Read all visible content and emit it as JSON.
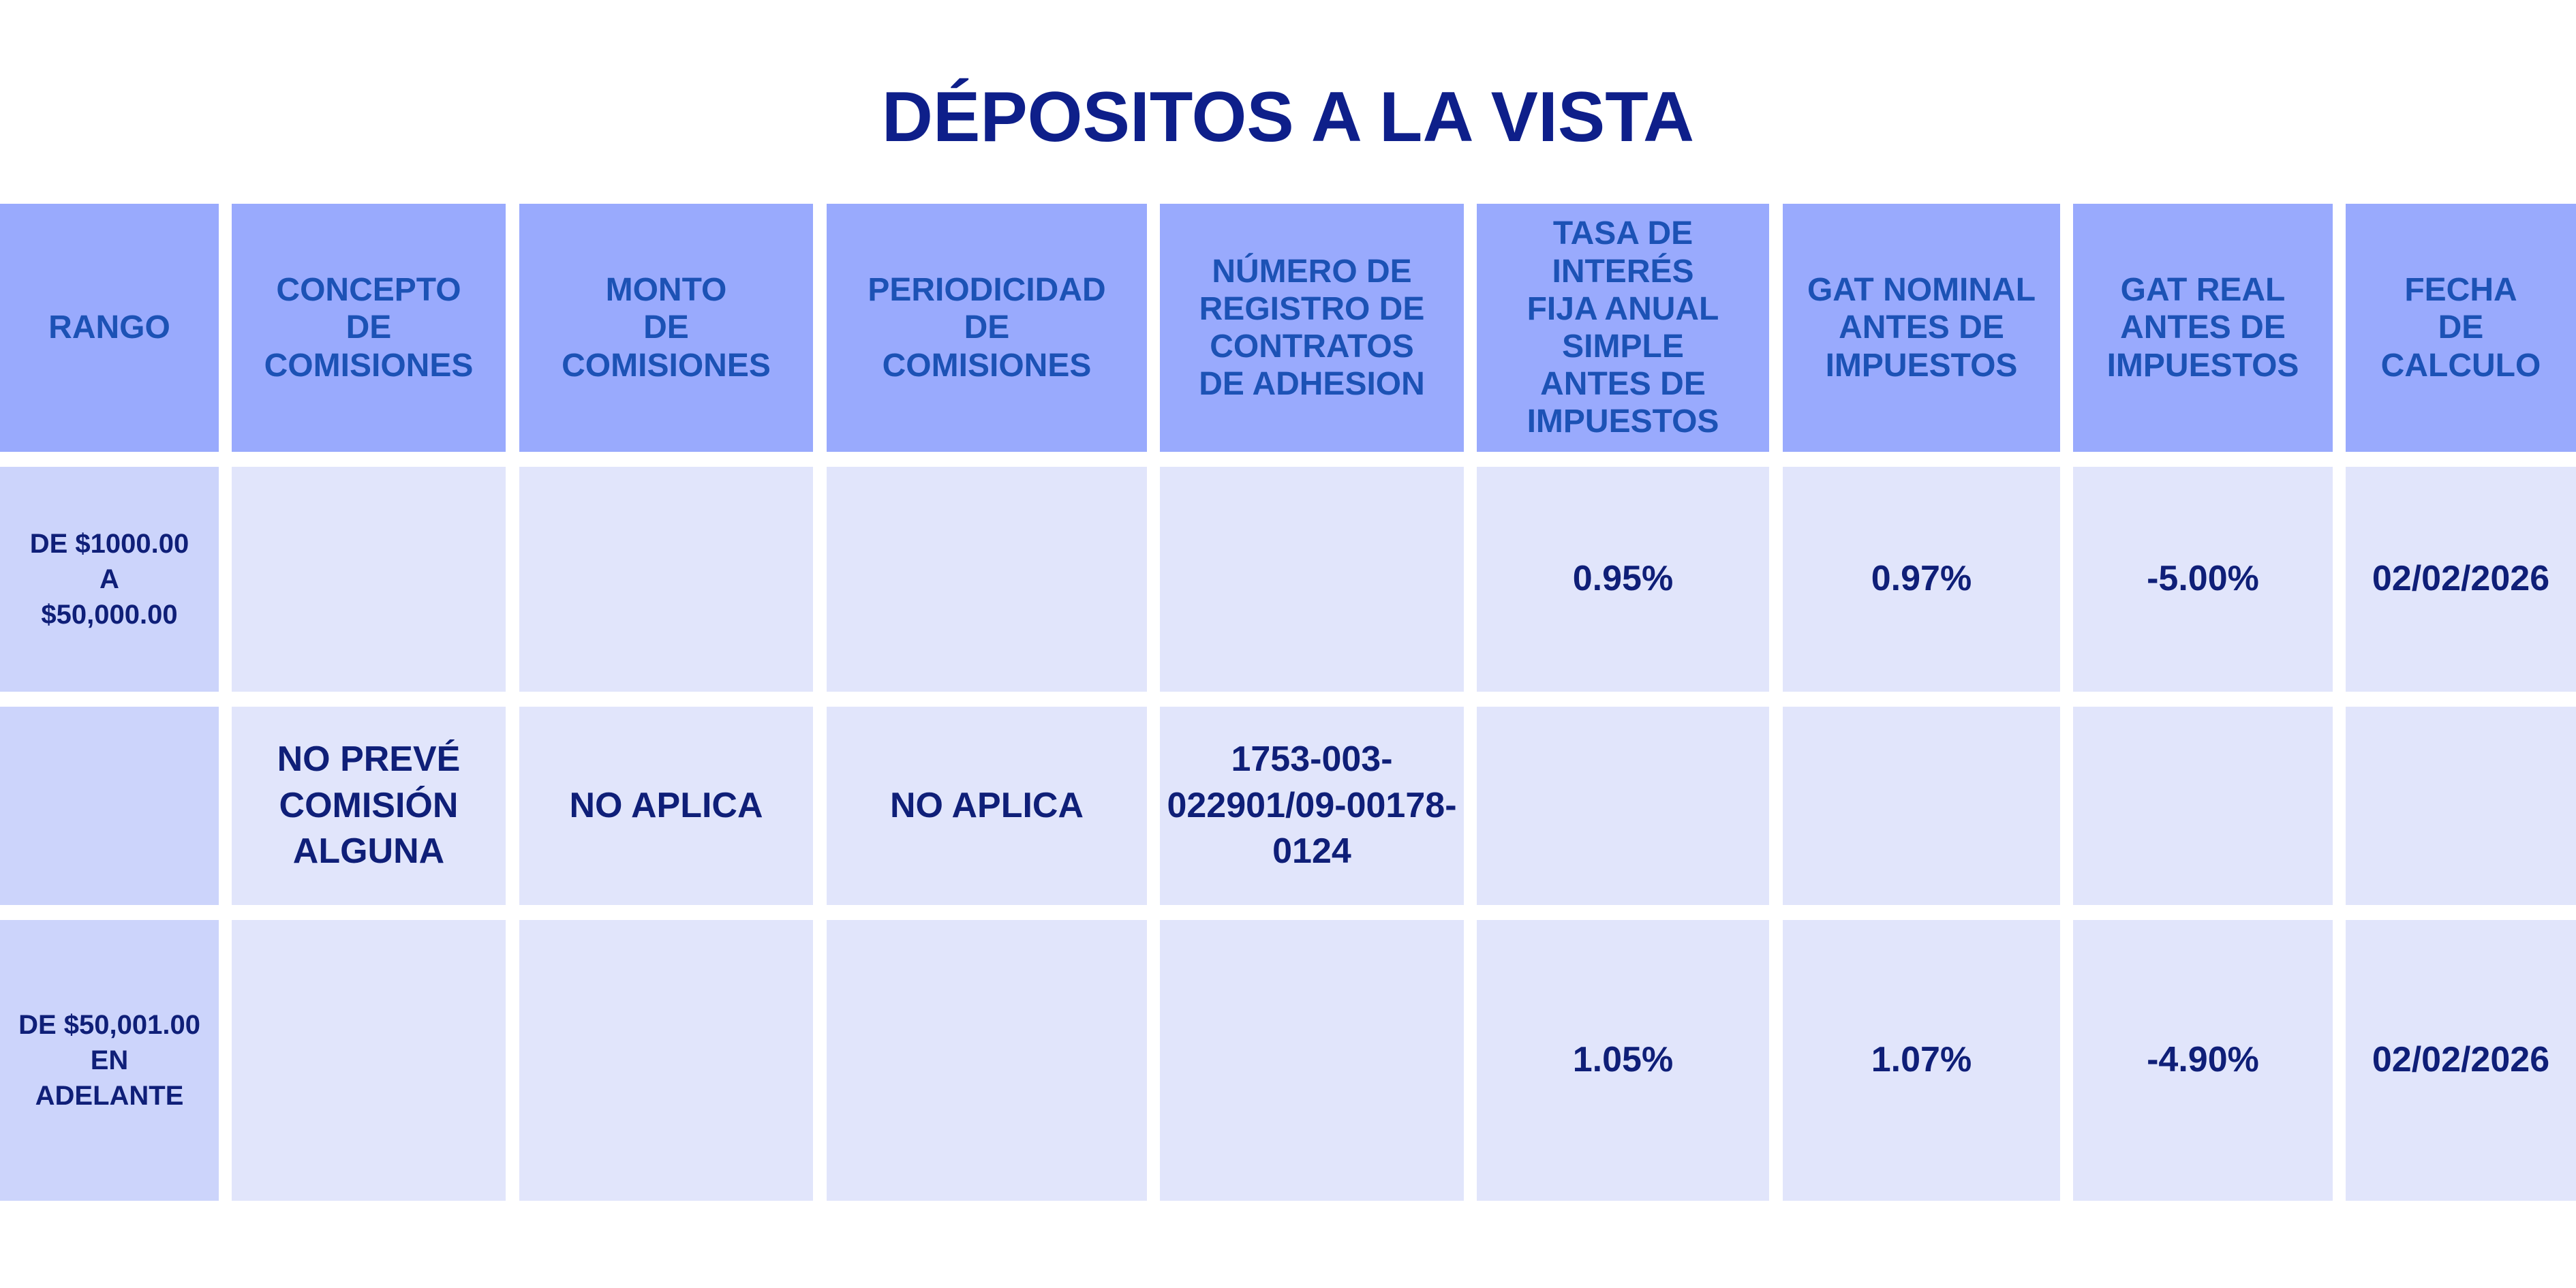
{
  "header": {
    "title": "DÉPOSITOS A LA VISTA"
  },
  "table": {
    "columns": [
      "RANGO",
      "CONCEPTO\nDE\nCOMISIONES",
      "MONTO\nDE\nCOMISIONES",
      "PERIODICIDAD\nDE\nCOMISIONES",
      "NÚMERO DE\nREGISTRO DE\nCONTRATOS\nDE ADHESION",
      "TASA DE\nINTERÉS\nFIJA ANUAL\nSIMPLE\nANTES DE\nIMPUESTOS",
      "GAT NOMINAL\nANTES DE\nIMPUESTOS",
      "GAT REAL\nANTES DE\nIMPUESTOS",
      "FECHA\nDE\nCALCULO"
    ],
    "rows": [
      [
        "DE $1000.00\nA\n$50,000.00",
        null,
        null,
        null,
        null,
        "0.95%",
        "0.97%",
        "-5.00%",
        "02/02/2026"
      ],
      [
        null,
        "NO PREVÉ\nCOMISIÓN\nALGUNA",
        "NO APLICA",
        "NO APLICA",
        "1753-003-\n022901/09-00178-\n0124",
        null,
        null,
        null,
        null
      ],
      [
        "DE $50,001.00\nEN\nADELANTE",
        null,
        null,
        null,
        null,
        "1.05%",
        "1.07%",
        "-4.90%",
        "02/02/2026"
      ]
    ]
  }
}
